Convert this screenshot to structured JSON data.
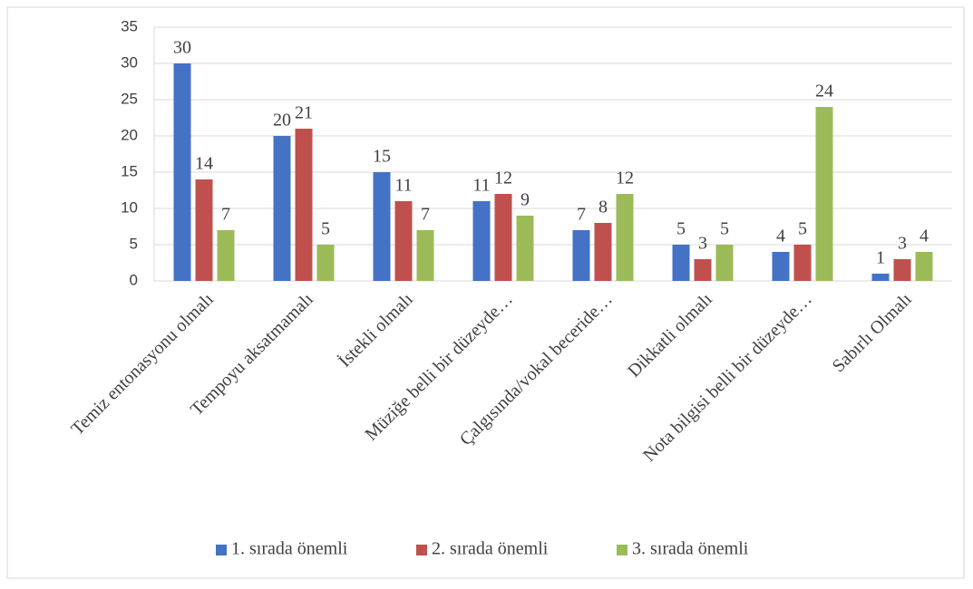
{
  "chart_data": {
    "type": "bar",
    "categories": [
      "Temiz entonasyonu olmalı",
      "Tempoyu aksatmamalı",
      "İstekli olmalı",
      "Müziğe belli bir düzeyde…",
      "Çalgısında/vokal beceride…",
      "Dikkatli olmalı",
      "Nota bilgisi belli bir düzeyde…",
      "Sabırlı Olmalı"
    ],
    "series": [
      {
        "name": "1. sırada önemli",
        "color": "#4472c4",
        "values": [
          30,
          20,
          15,
          11,
          7,
          5,
          4,
          1
        ]
      },
      {
        "name": "2. sırada önemli",
        "color": "#c0504d",
        "values": [
          14,
          21,
          11,
          12,
          8,
          3,
          5,
          3
        ]
      },
      {
        "name": "3. sırada önemli",
        "color": "#9bbb59",
        "values": [
          7,
          5,
          7,
          9,
          12,
          5,
          24,
          4
        ]
      }
    ],
    "ylim": [
      0,
      35
    ],
    "yticks": [
      0,
      5,
      10,
      15,
      20,
      25,
      30,
      35
    ],
    "grid": true,
    "legend": "bottom"
  }
}
